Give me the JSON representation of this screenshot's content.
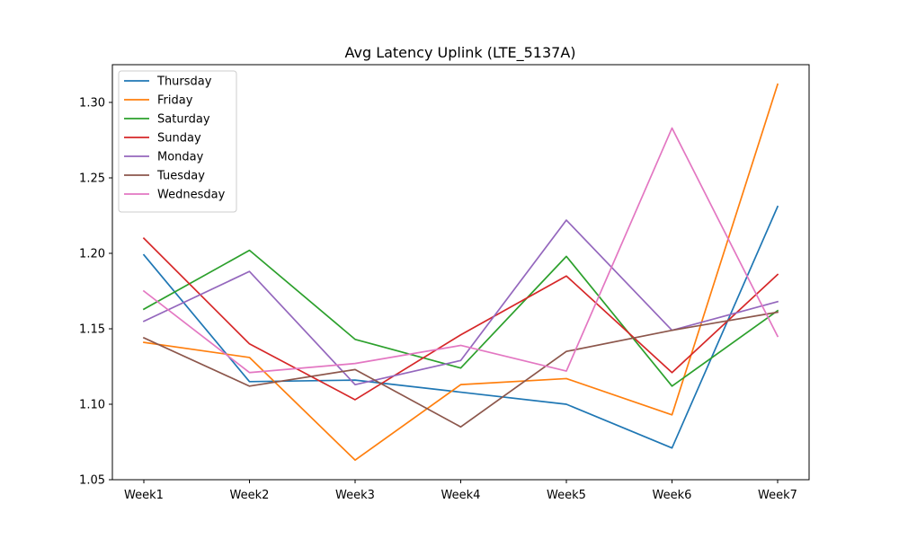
{
  "chart_data": {
    "type": "line",
    "title": "Avg Latency Uplink (LTE_5137A)",
    "xlabel": "",
    "ylabel": "",
    "categories": [
      "Week1",
      "Week2",
      "Week3",
      "Week4",
      "Week5",
      "Week6",
      "Week7"
    ],
    "ylim": [
      1.05,
      1.325
    ],
    "yticks": [
      "1.05",
      "1.10",
      "1.15",
      "1.20",
      "1.25",
      "1.30"
    ],
    "grid": false,
    "legend_position": "upper-left",
    "series": [
      {
        "name": "Thursday",
        "color": "#1f77b4",
        "values": [
          1.199,
          1.115,
          1.116,
          1.108,
          1.1,
          1.071,
          1.231
        ]
      },
      {
        "name": "Friday",
        "color": "#ff7f0e",
        "values": [
          1.141,
          1.131,
          1.063,
          1.113,
          1.117,
          1.093,
          1.312
        ]
      },
      {
        "name": "Saturday",
        "color": "#2ca02c",
        "values": [
          1.163,
          1.202,
          1.143,
          1.124,
          1.198,
          1.112,
          1.162
        ]
      },
      {
        "name": "Sunday",
        "color": "#d62728",
        "values": [
          1.21,
          1.14,
          1.103,
          1.146,
          1.185,
          1.121,
          1.186
        ]
      },
      {
        "name": "Monday",
        "color": "#9467bd",
        "values": [
          1.155,
          1.188,
          1.113,
          1.129,
          1.222,
          1.149,
          1.168
        ]
      },
      {
        "name": "Tuesday",
        "color": "#8c564b",
        "values": [
          1.144,
          1.112,
          1.123,
          1.085,
          1.135,
          1.149,
          1.161
        ]
      },
      {
        "name": "Wednesday",
        "color": "#e377c2",
        "values": [
          1.175,
          1.121,
          1.127,
          1.139,
          1.122,
          1.283,
          1.145
        ]
      }
    ]
  }
}
